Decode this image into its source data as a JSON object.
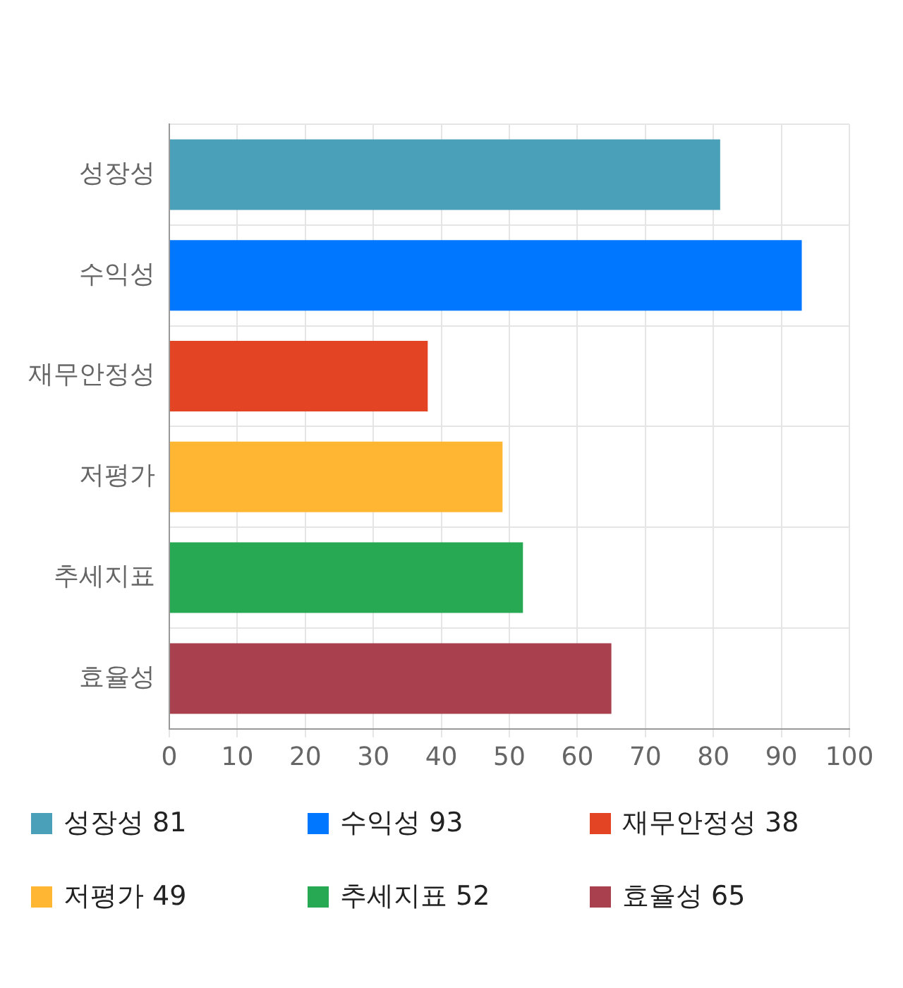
{
  "chart_data": {
    "type": "bar",
    "orientation": "horizontal",
    "categories": [
      "성장성",
      "수익성",
      "재무안정성",
      "저평가",
      "추세지표",
      "효율성"
    ],
    "values": [
      81,
      93,
      38,
      49,
      52,
      65
    ],
    "value_labels": [
      "81",
      "93",
      "38",
      "49",
      "52",
      "65"
    ],
    "colors": [
      "#4aa0b8",
      "#0077ff",
      "#e34524",
      "#ffb733",
      "#27a853",
      "#a8404e"
    ],
    "xlim": [
      0,
      100
    ],
    "xticks": [
      0,
      10,
      20,
      30,
      40,
      50,
      60,
      70,
      80,
      90,
      100
    ],
    "grid": true
  }
}
